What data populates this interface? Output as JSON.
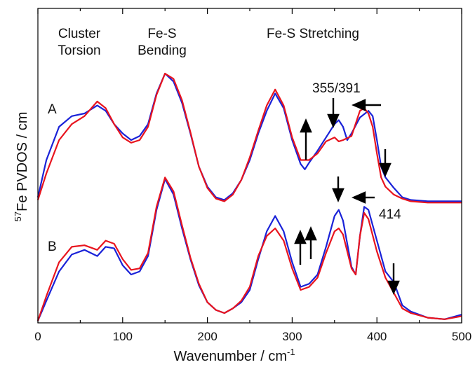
{
  "chart_data": {
    "type": "line",
    "xlabel": "Wavenumber / cm",
    "xlabel_sup": "-1",
    "ylabel_sup": "57",
    "ylabel": "Fe PVDOS / cm",
    "xlim": [
      0,
      500
    ],
    "x_ticks": [
      0,
      100,
      200,
      300,
      400,
      500
    ],
    "grid": false,
    "legend": "none",
    "colors": {
      "red": "#e8141e",
      "blue": "#1a22d8",
      "axis": "#000000"
    },
    "annotations": {
      "region_torsion_1": "Cluster",
      "region_torsion_2": "Torsion",
      "region_bending_1": "Fe-S",
      "region_bending_2": "Bending",
      "region_stretching": "Fe-S Stretching",
      "label_355_391": "355/391",
      "label_414": "414",
      "trace_a": "A",
      "trace_b": "B"
    },
    "series": [
      {
        "trace": "A",
        "color": "blue",
        "points": [
          [
            0,
            0.07
          ],
          [
            10,
            0.35
          ],
          [
            25,
            0.6
          ],
          [
            40,
            0.68
          ],
          [
            55,
            0.7
          ],
          [
            70,
            0.76
          ],
          [
            80,
            0.72
          ],
          [
            90,
            0.62
          ],
          [
            100,
            0.55
          ],
          [
            110,
            0.5
          ],
          [
            120,
            0.53
          ],
          [
            130,
            0.62
          ],
          [
            140,
            0.85
          ],
          [
            150,
            1.0
          ],
          [
            160,
            0.94
          ],
          [
            170,
            0.78
          ],
          [
            180,
            0.55
          ],
          [
            190,
            0.3
          ],
          [
            200,
            0.15
          ],
          [
            210,
            0.07
          ],
          [
            220,
            0.05
          ],
          [
            230,
            0.1
          ],
          [
            240,
            0.2
          ],
          [
            250,
            0.35
          ],
          [
            260,
            0.55
          ],
          [
            270,
            0.72
          ],
          [
            280,
            0.85
          ],
          [
            290,
            0.74
          ],
          [
            300,
            0.5
          ],
          [
            310,
            0.32
          ],
          [
            315,
            0.28
          ],
          [
            320,
            0.33
          ],
          [
            330,
            0.42
          ],
          [
            340,
            0.52
          ],
          [
            350,
            0.62
          ],
          [
            355,
            0.65
          ],
          [
            360,
            0.6
          ],
          [
            365,
            0.5
          ],
          [
            370,
            0.55
          ],
          [
            380,
            0.67
          ],
          [
            390,
            0.72
          ],
          [
            395,
            0.68
          ],
          [
            400,
            0.5
          ],
          [
            405,
            0.3
          ],
          [
            410,
            0.22
          ],
          [
            420,
            0.14
          ],
          [
            430,
            0.07
          ],
          [
            440,
            0.05
          ],
          [
            460,
            0.04
          ],
          [
            480,
            0.04
          ],
          [
            500,
            0.04
          ]
        ]
      },
      {
        "trace": "A",
        "color": "red",
        "points": [
          [
            0,
            0.05
          ],
          [
            10,
            0.25
          ],
          [
            25,
            0.5
          ],
          [
            40,
            0.62
          ],
          [
            55,
            0.68
          ],
          [
            70,
            0.79
          ],
          [
            80,
            0.74
          ],
          [
            90,
            0.62
          ],
          [
            100,
            0.52
          ],
          [
            110,
            0.48
          ],
          [
            120,
            0.5
          ],
          [
            130,
            0.6
          ],
          [
            140,
            0.84
          ],
          [
            150,
            1.0
          ],
          [
            160,
            0.96
          ],
          [
            170,
            0.8
          ],
          [
            180,
            0.56
          ],
          [
            190,
            0.3
          ],
          [
            200,
            0.14
          ],
          [
            210,
            0.06
          ],
          [
            220,
            0.04
          ],
          [
            230,
            0.09
          ],
          [
            240,
            0.2
          ],
          [
            250,
            0.37
          ],
          [
            260,
            0.57
          ],
          [
            270,
            0.76
          ],
          [
            280,
            0.88
          ],
          [
            290,
            0.76
          ],
          [
            300,
            0.52
          ],
          [
            310,
            0.35
          ],
          [
            320,
            0.35
          ],
          [
            330,
            0.4
          ],
          [
            340,
            0.49
          ],
          [
            350,
            0.52
          ],
          [
            355,
            0.49
          ],
          [
            360,
            0.5
          ],
          [
            370,
            0.53
          ],
          [
            380,
            0.72
          ],
          [
            385,
            0.74
          ],
          [
            390,
            0.7
          ],
          [
            395,
            0.6
          ],
          [
            400,
            0.4
          ],
          [
            405,
            0.22
          ],
          [
            410,
            0.15
          ],
          [
            420,
            0.09
          ],
          [
            430,
            0.06
          ],
          [
            440,
            0.04
          ],
          [
            460,
            0.03
          ],
          [
            480,
            0.03
          ],
          [
            500,
            0.03
          ]
        ]
      },
      {
        "trace": "B",
        "color": "blue",
        "points": [
          [
            0,
            0.0
          ],
          [
            10,
            0.13
          ],
          [
            25,
            0.32
          ],
          [
            40,
            0.43
          ],
          [
            55,
            0.46
          ],
          [
            70,
            0.42
          ],
          [
            80,
            0.48
          ],
          [
            90,
            0.47
          ],
          [
            100,
            0.36
          ],
          [
            110,
            0.3
          ],
          [
            120,
            0.32
          ],
          [
            130,
            0.42
          ],
          [
            140,
            0.72
          ],
          [
            150,
            0.92
          ],
          [
            160,
            0.82
          ],
          [
            170,
            0.6
          ],
          [
            180,
            0.4
          ],
          [
            190,
            0.23
          ],
          [
            200,
            0.12
          ],
          [
            210,
            0.07
          ],
          [
            220,
            0.05
          ],
          [
            230,
            0.08
          ],
          [
            240,
            0.12
          ],
          [
            250,
            0.2
          ],
          [
            260,
            0.4
          ],
          [
            270,
            0.58
          ],
          [
            280,
            0.68
          ],
          [
            290,
            0.58
          ],
          [
            300,
            0.38
          ],
          [
            310,
            0.22
          ],
          [
            320,
            0.24
          ],
          [
            330,
            0.3
          ],
          [
            340,
            0.48
          ],
          [
            350,
            0.68
          ],
          [
            355,
            0.72
          ],
          [
            360,
            0.65
          ],
          [
            370,
            0.35
          ],
          [
            375,
            0.3
          ],
          [
            380,
            0.55
          ],
          [
            385,
            0.74
          ],
          [
            390,
            0.72
          ],
          [
            400,
            0.52
          ],
          [
            410,
            0.32
          ],
          [
            420,
            0.25
          ],
          [
            430,
            0.1
          ],
          [
            440,
            0.06
          ],
          [
            460,
            0.02
          ],
          [
            480,
            0.01
          ],
          [
            500,
            0.04
          ]
        ]
      },
      {
        "trace": "B",
        "color": "red",
        "points": [
          [
            0,
            0.0
          ],
          [
            10,
            0.16
          ],
          [
            25,
            0.38
          ],
          [
            40,
            0.48
          ],
          [
            55,
            0.49
          ],
          [
            70,
            0.46
          ],
          [
            80,
            0.52
          ],
          [
            90,
            0.5
          ],
          [
            100,
            0.4
          ],
          [
            110,
            0.33
          ],
          [
            120,
            0.34
          ],
          [
            130,
            0.44
          ],
          [
            140,
            0.74
          ],
          [
            150,
            0.93
          ],
          [
            160,
            0.84
          ],
          [
            170,
            0.62
          ],
          [
            180,
            0.41
          ],
          [
            190,
            0.24
          ],
          [
            200,
            0.12
          ],
          [
            210,
            0.07
          ],
          [
            220,
            0.05
          ],
          [
            230,
            0.08
          ],
          [
            240,
            0.13
          ],
          [
            250,
            0.22
          ],
          [
            260,
            0.42
          ],
          [
            270,
            0.55
          ],
          [
            280,
            0.6
          ],
          [
            290,
            0.52
          ],
          [
            300,
            0.34
          ],
          [
            310,
            0.2
          ],
          [
            320,
            0.22
          ],
          [
            330,
            0.28
          ],
          [
            340,
            0.44
          ],
          [
            350,
            0.58
          ],
          [
            355,
            0.6
          ],
          [
            360,
            0.56
          ],
          [
            370,
            0.34
          ],
          [
            375,
            0.3
          ],
          [
            380,
            0.55
          ],
          [
            385,
            0.7
          ],
          [
            390,
            0.66
          ],
          [
            400,
            0.45
          ],
          [
            410,
            0.28
          ],
          [
            420,
            0.18
          ],
          [
            430,
            0.08
          ],
          [
            440,
            0.05
          ],
          [
            460,
            0.02
          ],
          [
            480,
            0.01
          ],
          [
            500,
            0.03
          ]
        ]
      }
    ]
  }
}
